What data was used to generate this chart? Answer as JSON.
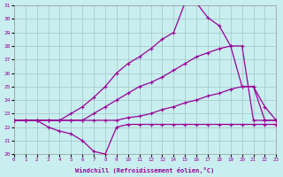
{
  "xlabel": "Windchill (Refroidissement éolien,°C)",
  "xlim": [
    0,
    23
  ],
  "ylim": [
    20,
    31
  ],
  "xticks": [
    0,
    1,
    2,
    3,
    4,
    5,
    6,
    7,
    8,
    9,
    10,
    11,
    12,
    13,
    14,
    15,
    16,
    17,
    18,
    19,
    20,
    21,
    22,
    23
  ],
  "yticks": [
    20,
    21,
    22,
    23,
    24,
    25,
    26,
    27,
    28,
    29,
    30,
    31
  ],
  "bg_color": "#c8eef0",
  "grid_color": "#aacccc",
  "line_color": "#990099",
  "curve1_x": [
    0,
    1,
    2,
    3,
    4,
    5,
    6,
    7,
    8,
    9,
    10,
    11,
    12,
    13,
    14,
    15,
    16,
    17,
    18,
    19,
    20,
    21,
    22,
    23
  ],
  "curve1_y": [
    22.5,
    22.5,
    22.5,
    22.5,
    22.5,
    23.0,
    23.5,
    24.2,
    25.0,
    26.0,
    26.7,
    27.2,
    27.8,
    28.5,
    29.0,
    31.2,
    31.2,
    30.1,
    29.5,
    28.0,
    25.0,
    25.0,
    23.5,
    22.5
  ],
  "curve2_x": [
    0,
    1,
    2,
    3,
    4,
    5,
    6,
    7,
    8,
    9,
    10,
    11,
    12,
    13,
    14,
    15,
    16,
    17,
    18,
    19,
    20,
    21,
    22,
    23
  ],
  "curve2_y": [
    22.5,
    22.5,
    22.5,
    22.5,
    22.5,
    22.5,
    22.5,
    23.0,
    23.5,
    24.0,
    24.5,
    25.0,
    25.3,
    25.7,
    26.2,
    26.7,
    27.2,
    27.5,
    27.8,
    28.0,
    28.0,
    22.5,
    22.5,
    22.5
  ],
  "curve3_x": [
    0,
    1,
    2,
    3,
    4,
    5,
    6,
    7,
    8,
    9,
    10,
    11,
    12,
    13,
    14,
    15,
    16,
    17,
    18,
    19,
    20,
    21,
    22,
    23
  ],
  "curve3_y": [
    22.5,
    22.5,
    22.5,
    22.5,
    22.5,
    22.5,
    22.5,
    22.5,
    22.5,
    22.5,
    22.7,
    22.8,
    23.0,
    23.3,
    23.5,
    23.8,
    24.0,
    24.3,
    24.5,
    24.8,
    25.0,
    25.0,
    22.5,
    22.5
  ],
  "curve4_x": [
    0,
    1,
    2,
    3,
    4,
    5,
    6,
    7,
    8,
    9,
    10,
    11,
    12,
    13,
    14,
    15,
    16,
    17,
    18,
    19,
    20,
    21,
    22,
    23
  ],
  "curve4_y": [
    22.5,
    22.5,
    22.5,
    22.0,
    21.7,
    21.5,
    21.0,
    20.2,
    20.0,
    22.0,
    22.2,
    22.2,
    22.2,
    22.2,
    22.2,
    22.2,
    22.2,
    22.2,
    22.2,
    22.2,
    22.2,
    22.2,
    22.2,
    22.2
  ]
}
